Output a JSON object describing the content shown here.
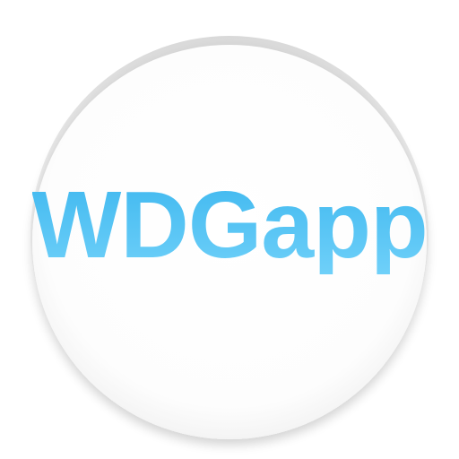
{
  "app": {
    "name": "WDGapp"
  },
  "theme": {
    "text_color": "#4fc3f7",
    "text_color_dark": "#3fb8ef",
    "disc_color": "#ffffff",
    "rim_color": "#cfcfcf"
  }
}
